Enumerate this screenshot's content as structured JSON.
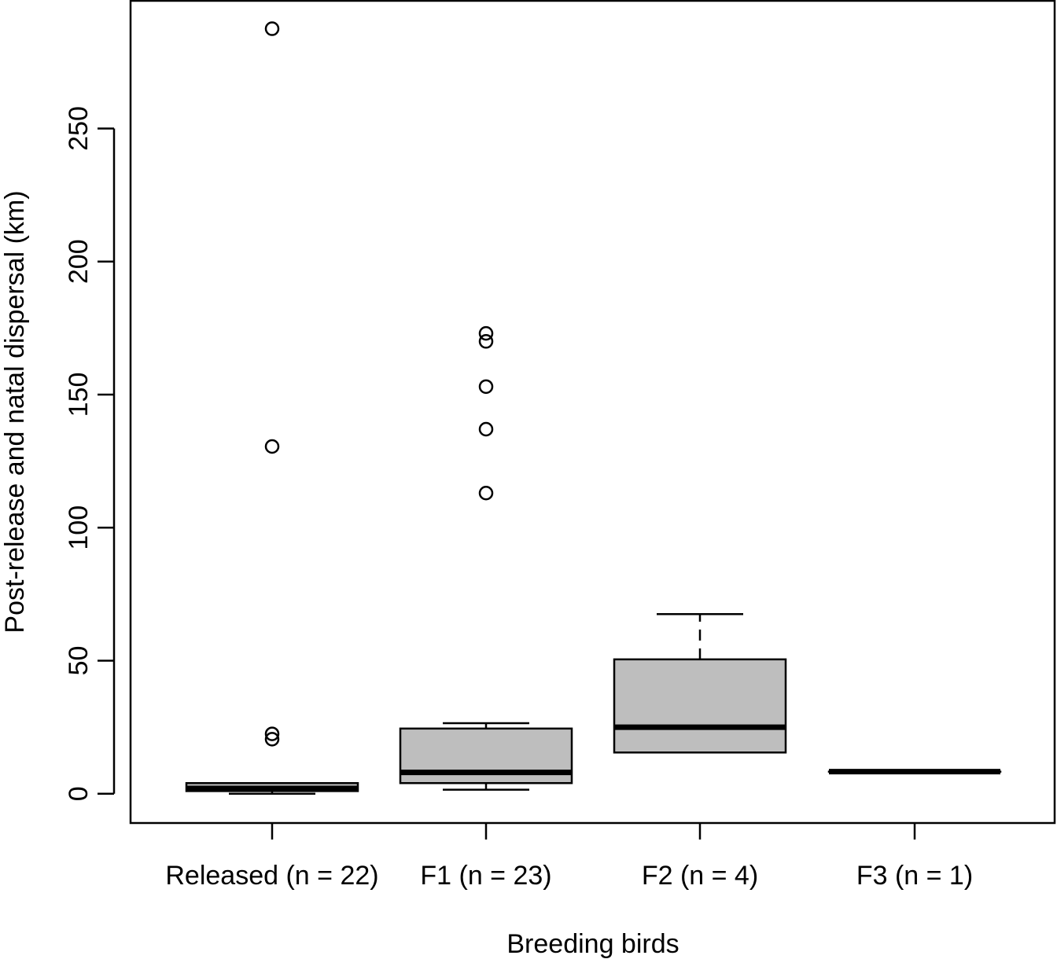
{
  "chart_data": {
    "type": "boxplot",
    "title": "",
    "xlabel": "Breeding birds",
    "ylabel": "Post-release and natal dispersal (km)",
    "ylim": [
      -11,
      298
    ],
    "yticks": [
      0,
      50,
      100,
      150,
      200,
      250
    ],
    "grid": false,
    "colors": {
      "box_fill": "#bebebe",
      "stroke": "#000000"
    },
    "categories": [
      "Released (n = 22)",
      "F1 (n = 23)",
      "F2 (n = 4)",
      "F3 (n = 1)"
    ],
    "groups": [
      {
        "label": "Released (n = 22)",
        "whisker_low": 0,
        "q1": 1,
        "median": 2,
        "q3": 4,
        "whisker_high": 4,
        "outliers": [
          20.5,
          22.5,
          130.5,
          287.5
        ]
      },
      {
        "label": "F1 (n = 23)",
        "whisker_low": 1.5,
        "q1": 4,
        "median": 8,
        "q3": 24.5,
        "whisker_high": 26.5,
        "outliers": [
          113,
          137,
          153,
          170,
          173
        ]
      },
      {
        "label": "F2 (n = 4)",
        "whisker_low": 15.5,
        "q1": 15.5,
        "median": 25,
        "q3": 50.5,
        "whisker_high": 67.5,
        "outliers": []
      },
      {
        "label": "F3 (n = 1)",
        "whisker_low": 8.3,
        "q1": 8.3,
        "median": 8.3,
        "q3": 8.3,
        "whisker_high": 8.3,
        "outliers": []
      }
    ]
  }
}
